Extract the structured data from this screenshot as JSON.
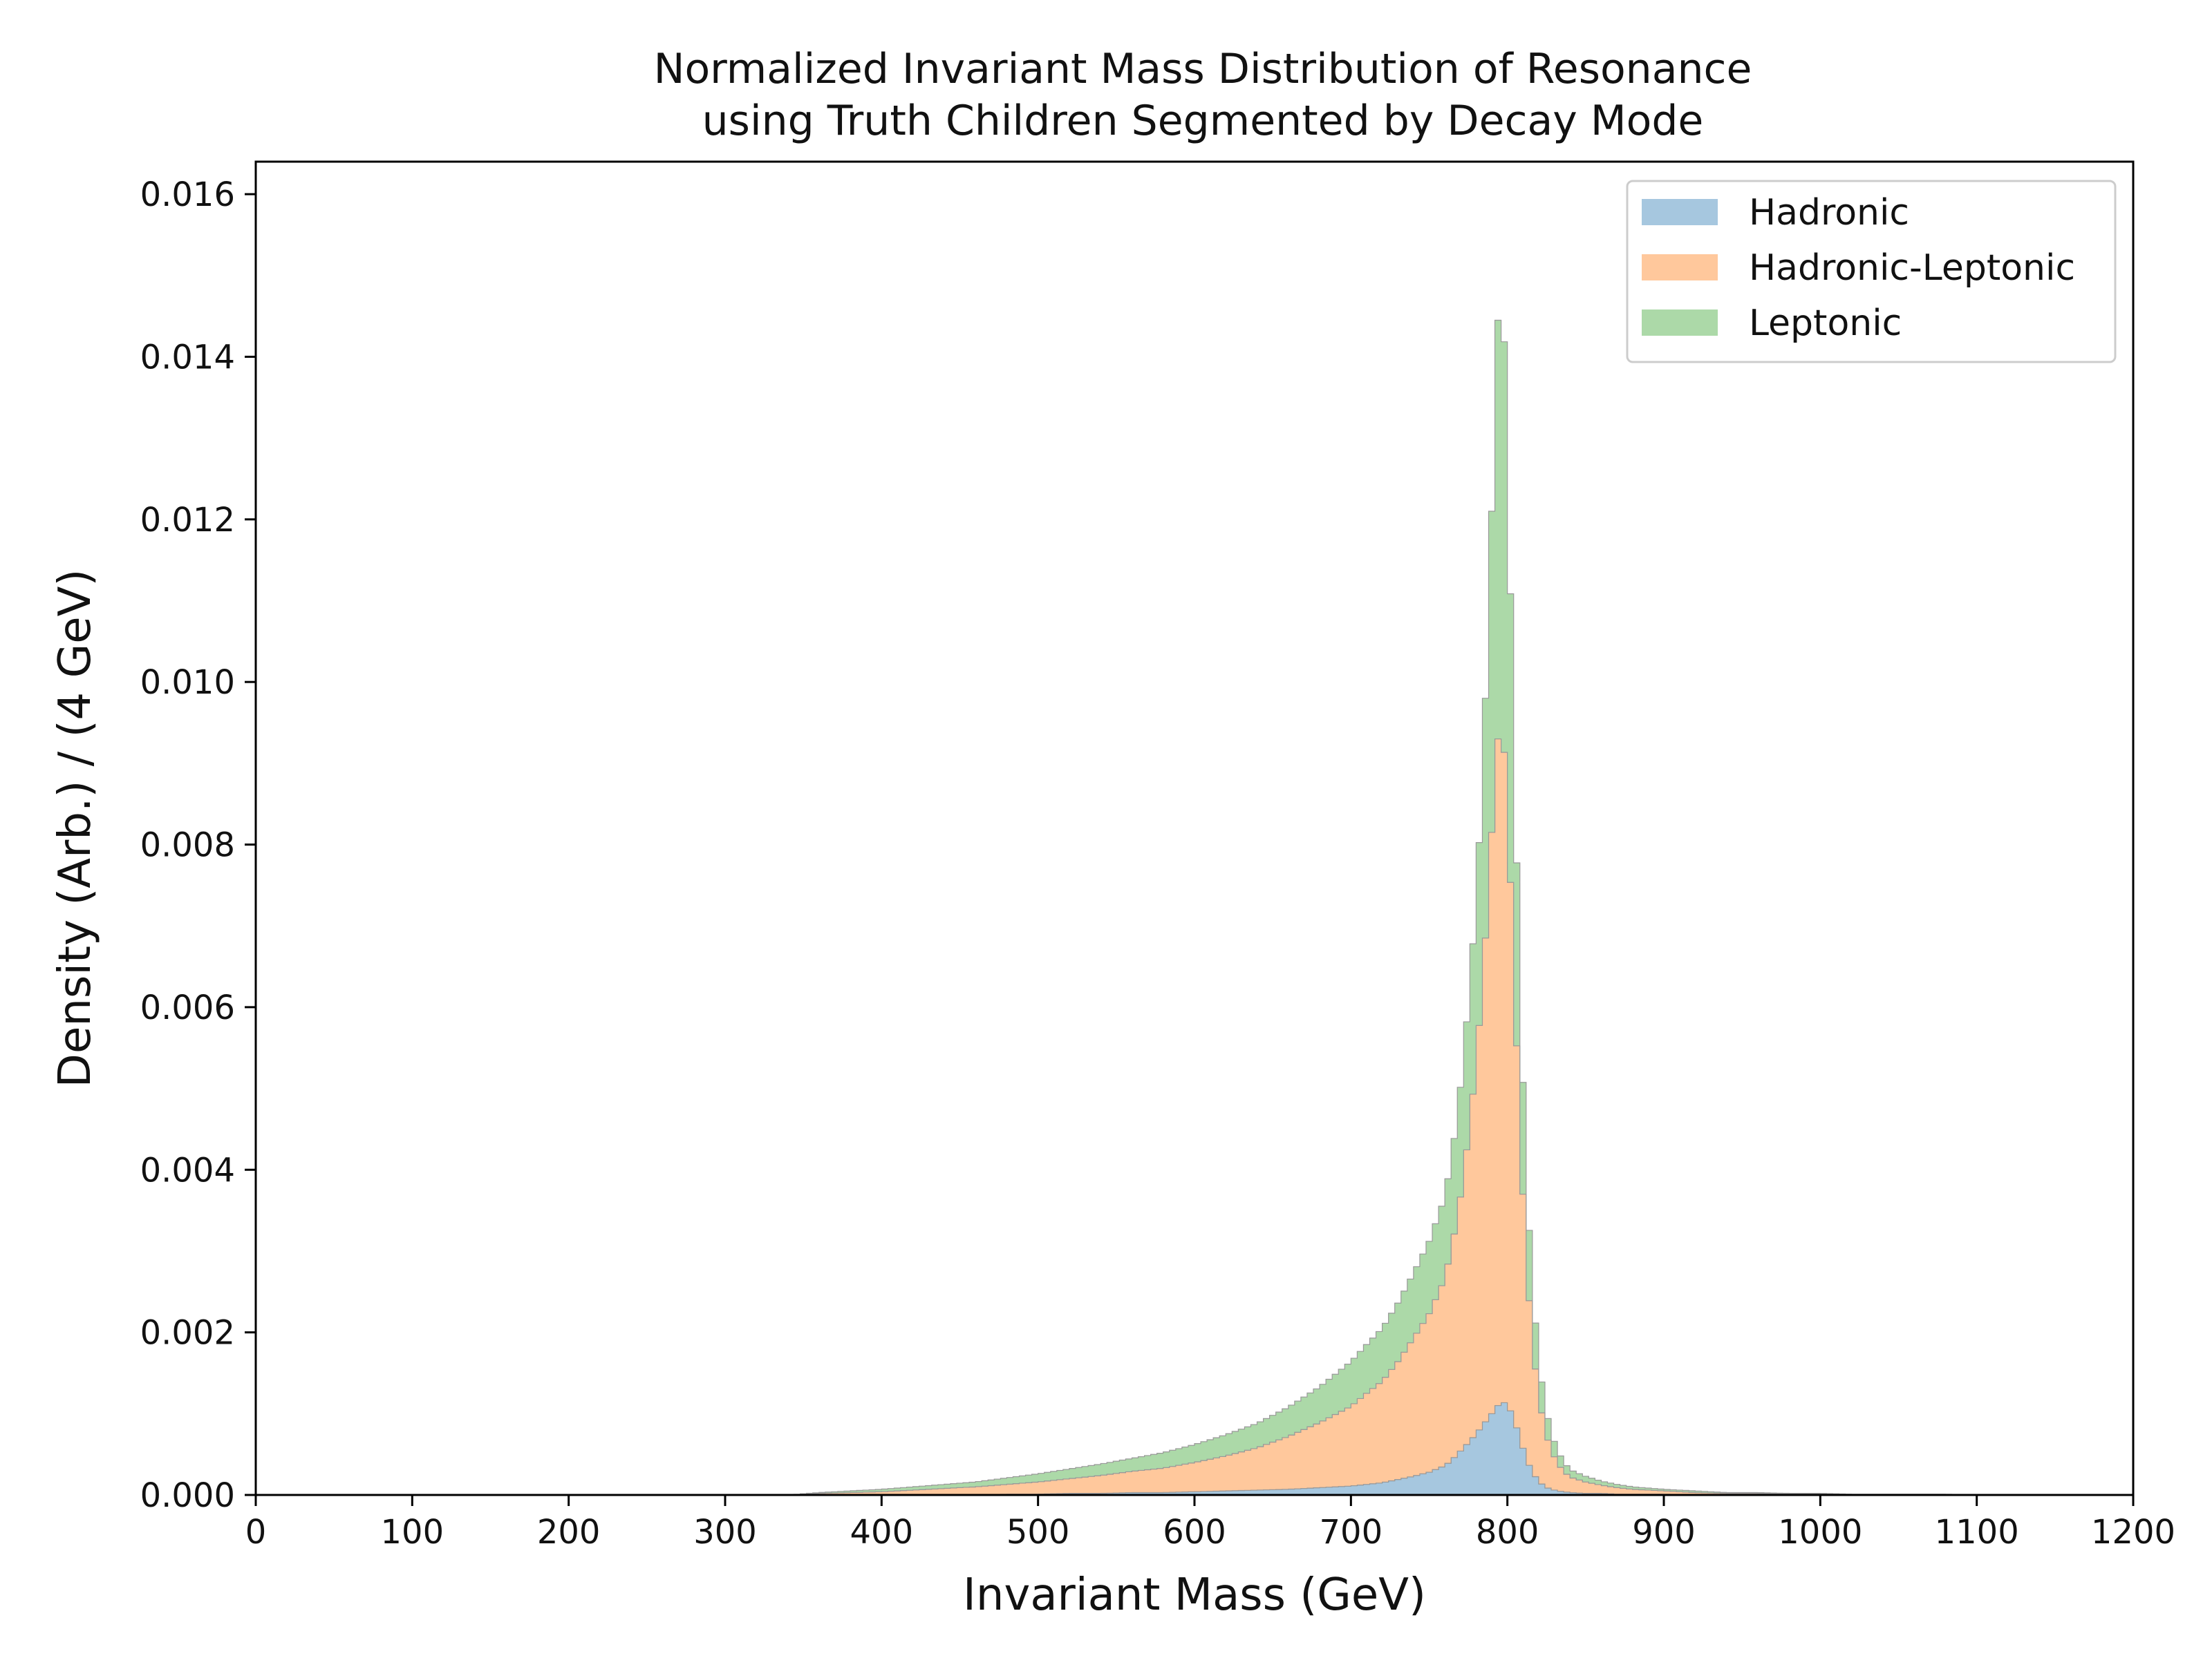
{
  "chart_data": {
    "type": "area",
    "subtype": "stacked-step-histogram",
    "title": [
      "Normalized Invariant Mass Distribution of Resonance",
      "using Truth Children Segmented by Decay Mode"
    ],
    "xlabel": "Invariant Mass (GeV)",
    "ylabel": "Density (Arb.) / (4 GeV)",
    "xlim": [
      0,
      1200
    ],
    "ylim": [
      0,
      0.0164
    ],
    "xticks": [
      "0",
      "100",
      "200",
      "300",
      "400",
      "500",
      "600",
      "700",
      "800",
      "900",
      "1000",
      "1100",
      "1200"
    ],
    "xtick_values": [
      0,
      100,
      200,
      300,
      400,
      500,
      600,
      700,
      800,
      900,
      1000,
      1100,
      1200
    ],
    "yticks": [
      "0.000",
      "0.002",
      "0.004",
      "0.006",
      "0.008",
      "0.010",
      "0.012",
      "0.014",
      "0.016"
    ],
    "ytick_values": [
      0,
      0.002,
      0.004,
      0.006,
      0.008,
      0.01,
      0.012,
      0.014,
      0.016
    ],
    "bin_width": 4,
    "stacked": true,
    "grid": false,
    "legend_position": "top-right",
    "x": [
      360,
      380,
      400,
      420,
      440,
      460,
      480,
      500,
      520,
      540,
      560,
      580,
      600,
      620,
      640,
      660,
      680,
      700,
      710,
      720,
      730,
      740,
      750,
      760,
      764,
      768,
      772,
      776,
      780,
      784,
      788,
      792,
      796,
      800,
      804,
      808,
      812,
      816,
      820,
      824,
      828,
      832,
      836,
      840,
      850,
      860,
      870,
      880,
      900,
      920,
      940,
      960,
      980,
      1000,
      1020,
      1050,
      1080,
      1100
    ],
    "series": [
      {
        "name": "Hadronic",
        "color": "#a6c7df",
        "values": [
          0,
          0,
          0,
          0,
          0,
          0,
          1e-05,
          1e-05,
          2e-05,
          2e-05,
          3e-05,
          3e-05,
          4e-05,
          5e-05,
          6e-05,
          7e-05,
          9e-05,
          0.00011,
          0.00013,
          0.00015,
          0.00019,
          0.00023,
          0.00028,
          0.00036,
          0.00042,
          0.0005,
          0.00058,
          0.00066,
          0.00075,
          0.00085,
          0.00095,
          0.00105,
          0.00115,
          0.00112,
          0.00095,
          0.0007,
          0.00045,
          0.00028,
          0.00017,
          0.0001,
          7e-05,
          5e-05,
          4e-05,
          3e-05,
          2e-05,
          2e-05,
          1e-05,
          1e-05,
          1e-05,
          0,
          0,
          0,
          0,
          0,
          0,
          0,
          0,
          0
        ]
      },
      {
        "name": "Hadronic-Leptonic",
        "color": "#ffc89c",
        "values": [
          2e-05,
          3e-05,
          4e-05,
          6e-05,
          8e-05,
          0.0001,
          0.00012,
          0.00015,
          0.00018,
          0.00022,
          0.00026,
          0.0003,
          0.00036,
          0.00043,
          0.00052,
          0.00065,
          0.0008,
          0.00098,
          0.00112,
          0.00125,
          0.00145,
          0.0017,
          0.00195,
          0.0023,
          0.0026,
          0.0029,
          0.00335,
          0.0039,
          0.00455,
          0.0054,
          0.0065,
          0.0078,
          0.0086,
          0.0074,
          0.0056,
          0.0038,
          0.00245,
          0.0016,
          0.00105,
          0.0007,
          0.00048,
          0.00034,
          0.00025,
          0.00019,
          0.00014,
          0.0001,
          8e-05,
          6e-05,
          4e-05,
          3e-05,
          2e-05,
          2e-05,
          1e-05,
          1e-05,
          0,
          0,
          0,
          0
        ]
      },
      {
        "name": "Leptonic",
        "color": "#acd9a8",
        "values": [
          1e-05,
          2e-05,
          3e-05,
          4e-05,
          5e-05,
          6e-05,
          8e-05,
          0.0001,
          0.00012,
          0.00014,
          0.00016,
          0.00019,
          0.00022,
          0.00026,
          0.0003,
          0.00036,
          0.00044,
          0.00055,
          0.0006,
          0.00065,
          0.00072,
          0.0008,
          0.00089,
          0.001,
          0.0011,
          0.00125,
          0.00145,
          0.0017,
          0.002,
          0.0025,
          0.0034,
          0.0045,
          0.0058,
          0.0043,
          0.0028,
          0.0017,
          0.00105,
          0.00068,
          0.00045,
          0.00031,
          0.00022,
          0.00016,
          0.00012,
          9e-05,
          7e-05,
          5e-05,
          4e-05,
          3e-05,
          2e-05,
          2e-05,
          1e-05,
          1e-05,
          1e-05,
          1e-05,
          1e-05,
          1e-05,
          1e-05,
          0
        ]
      }
    ],
    "edge_color": "#999999"
  }
}
